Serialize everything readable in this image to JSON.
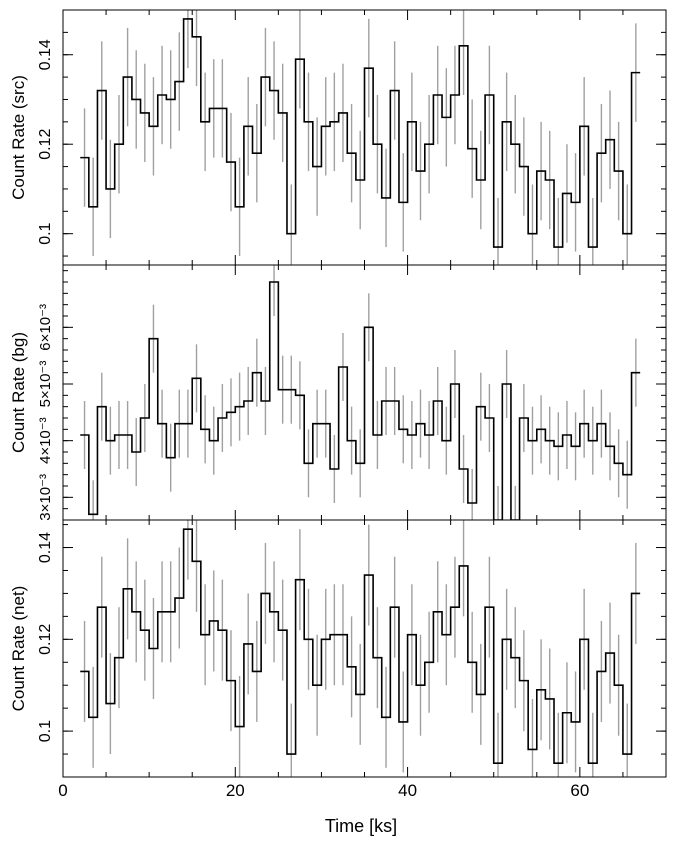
{
  "chart_data": [
    {
      "type": "line",
      "step": true,
      "ylabel": "Count Rate (src)",
      "ylim": [
        0.093,
        0.15
      ],
      "yticks": [
        {
          "v": 0.1,
          "label": "0.1"
        },
        {
          "v": 0.12,
          "label": "0.12"
        },
        {
          "v": 0.14,
          "label": "0.14"
        }
      ],
      "minor_step": 0.005,
      "values": [
        0.117,
        0.106,
        0.132,
        0.11,
        0.12,
        0.135,
        0.13,
        0.127,
        0.124,
        0.131,
        0.13,
        0.134,
        0.148,
        0.144,
        0.125,
        0.128,
        0.128,
        0.116,
        0.106,
        0.124,
        0.118,
        0.135,
        0.132,
        0.127,
        0.1,
        0.139,
        0.125,
        0.115,
        0.124,
        0.125,
        0.127,
        0.118,
        0.112,
        0.137,
        0.12,
        0.108,
        0.132,
        0.107,
        0.125,
        0.114,
        0.12,
        0.131,
        0.126,
        0.131,
        0.142,
        0.119,
        0.112,
        0.131,
        0.097,
        0.125,
        0.12,
        0.115,
        0.1,
        0.114,
        0.112,
        0.097,
        0.109,
        0.107,
        0.124,
        0.097,
        0.118,
        0.121,
        0.114,
        0.1,
        0.136
      ],
      "errors": [
        0.011,
        0.011,
        0.011,
        0.011,
        0.011,
        0.011,
        0.011,
        0.011,
        0.011,
        0.011,
        0.011,
        0.011,
        0.011,
        0.011,
        0.011,
        0.011,
        0.011,
        0.011,
        0.011,
        0.011,
        0.011,
        0.011,
        0.011,
        0.011,
        0.011,
        0.011,
        0.011,
        0.011,
        0.011,
        0.011,
        0.011,
        0.011,
        0.011,
        0.011,
        0.011,
        0.011,
        0.011,
        0.011,
        0.011,
        0.011,
        0.011,
        0.011,
        0.011,
        0.011,
        0.011,
        0.011,
        0.011,
        0.011,
        0.011,
        0.011,
        0.011,
        0.011,
        0.011,
        0.011,
        0.011,
        0.011,
        0.011,
        0.011,
        0.011,
        0.011,
        0.011,
        0.011,
        0.011,
        0.011,
        0.011
      ]
    },
    {
      "type": "line",
      "step": true,
      "ylabel": "Count Rate (bg)",
      "ylim": [
        0.0026,
        0.0071
      ],
      "yticks": [
        {
          "v": 0.003,
          "label": "3×10⁻³"
        },
        {
          "v": 0.004,
          "label": "4×10⁻³"
        },
        {
          "v": 0.005,
          "label": "5×10⁻³"
        },
        {
          "v": 0.006,
          "label": "6×10⁻³"
        }
      ],
      "minor_step": 0.0002,
      "values": [
        0.0041,
        0.0027,
        0.0046,
        0.004,
        0.0041,
        0.0041,
        0.0038,
        0.0044,
        0.0058,
        0.0043,
        0.0037,
        0.0043,
        0.0043,
        0.0051,
        0.0042,
        0.004,
        0.0044,
        0.0045,
        0.0046,
        0.0047,
        0.0052,
        0.0047,
        0.0068,
        0.0049,
        0.0049,
        0.0048,
        0.0036,
        0.0043,
        0.0043,
        0.0035,
        0.0053,
        0.004,
        0.0036,
        0.006,
        0.0041,
        0.0047,
        0.0047,
        0.0042,
        0.0041,
        0.0043,
        0.0041,
        0.0047,
        0.004,
        0.005,
        0.0035,
        0.0029,
        0.0046,
        0.0044,
        0.0026,
        0.005,
        0.0026,
        0.0044,
        0.004,
        0.0042,
        0.004,
        0.0039,
        0.0041,
        0.0039,
        0.0043,
        0.004,
        0.0043,
        0.0039,
        0.0036,
        0.0034,
        0.0052
      ],
      "errors": [
        0.0006,
        0.0006,
        0.0006,
        0.0006,
        0.0006,
        0.0006,
        0.0006,
        0.0006,
        0.0006,
        0.0006,
        0.0006,
        0.0006,
        0.0006,
        0.0006,
        0.0006,
        0.0006,
        0.0006,
        0.0006,
        0.0006,
        0.0006,
        0.0006,
        0.0006,
        0.0006,
        0.0006,
        0.0006,
        0.0006,
        0.0006,
        0.0006,
        0.0006,
        0.0006,
        0.0006,
        0.0006,
        0.0006,
        0.0006,
        0.0006,
        0.0006,
        0.0006,
        0.0006,
        0.0006,
        0.0006,
        0.0006,
        0.0006,
        0.0006,
        0.0006,
        0.0006,
        0.0006,
        0.0006,
        0.0006,
        0.0006,
        0.0006,
        0.0006,
        0.0006,
        0.0006,
        0.0006,
        0.0006,
        0.0006,
        0.0006,
        0.0006,
        0.0006,
        0.0006,
        0.0006,
        0.0006,
        0.0006,
        0.0006,
        0.0006
      ]
    },
    {
      "type": "line",
      "step": true,
      "ylabel": "Count Rate (net)",
      "ylim": [
        0.09,
        0.146
      ],
      "yticks": [
        {
          "v": 0.1,
          "label": "0.1"
        },
        {
          "v": 0.12,
          "label": "0.12"
        },
        {
          "v": 0.14,
          "label": "0.14"
        }
      ],
      "minor_step": 0.005,
      "values": [
        0.113,
        0.103,
        0.127,
        0.106,
        0.116,
        0.131,
        0.126,
        0.122,
        0.118,
        0.126,
        0.126,
        0.129,
        0.144,
        0.137,
        0.121,
        0.124,
        0.122,
        0.111,
        0.101,
        0.119,
        0.113,
        0.13,
        0.126,
        0.122,
        0.095,
        0.133,
        0.12,
        0.11,
        0.12,
        0.121,
        0.121,
        0.114,
        0.108,
        0.134,
        0.116,
        0.103,
        0.127,
        0.102,
        0.121,
        0.11,
        0.115,
        0.126,
        0.121,
        0.127,
        0.136,
        0.115,
        0.108,
        0.127,
        0.093,
        0.12,
        0.116,
        0.111,
        0.096,
        0.109,
        0.107,
        0.093,
        0.104,
        0.102,
        0.12,
        0.093,
        0.113,
        0.117,
        0.11,
        0.095,
        0.13
      ],
      "errors": [
        0.011,
        0.011,
        0.011,
        0.011,
        0.011,
        0.011,
        0.011,
        0.011,
        0.011,
        0.011,
        0.011,
        0.011,
        0.011,
        0.011,
        0.011,
        0.011,
        0.011,
        0.011,
        0.011,
        0.011,
        0.011,
        0.011,
        0.011,
        0.011,
        0.011,
        0.011,
        0.011,
        0.011,
        0.011,
        0.011,
        0.011,
        0.011,
        0.011,
        0.011,
        0.011,
        0.011,
        0.011,
        0.011,
        0.011,
        0.011,
        0.011,
        0.011,
        0.011,
        0.011,
        0.011,
        0.011,
        0.011,
        0.011,
        0.011,
        0.011,
        0.011,
        0.011,
        0.011,
        0.011,
        0.011,
        0.011,
        0.011,
        0.011,
        0.011,
        0.011,
        0.011,
        0.011,
        0.011,
        0.011,
        0.011
      ]
    }
  ],
  "shared_x": {
    "xlabel": "Time [ks]",
    "xlim": [
      0,
      70
    ],
    "bin_start": 2.0,
    "bin_width": 1.0,
    "xticks": [
      {
        "v": 0,
        "label": "0"
      },
      {
        "v": 20,
        "label": "20"
      },
      {
        "v": 40,
        "label": "40"
      },
      {
        "v": 60,
        "label": "60"
      }
    ]
  },
  "colors": {
    "line": "#000000",
    "errorbar": "#a0a0a0",
    "axes": "#000000"
  }
}
